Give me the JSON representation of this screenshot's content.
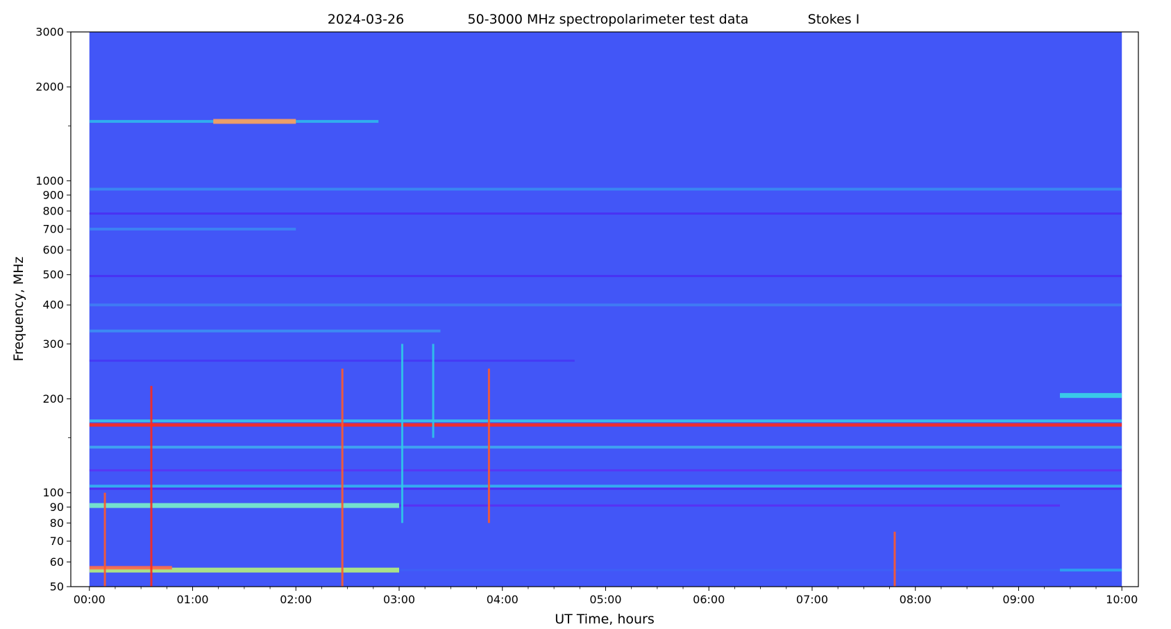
{
  "chart_data": {
    "type": "heatmap",
    "title": {
      "date": "2024-03-26",
      "main": "50-3000 MHz spectropolarimeter test data",
      "parameter": "Stokes I"
    },
    "xlabel": "UT Time, hours",
    "ylabel": "Frequency, MHz",
    "x_scale": "time",
    "y_scale": "log",
    "xlim": [
      "00:00",
      "10:00"
    ],
    "data_extent_hours": [
      0,
      10
    ],
    "ylim": [
      50,
      3000
    ],
    "x_ticks": [
      "00:00",
      "01:00",
      "02:00",
      "03:00",
      "04:00",
      "05:00",
      "06:00",
      "07:00",
      "08:00",
      "09:00",
      "10:00"
    ],
    "y_tick_labels": [
      "50",
      "60",
      "70",
      "80",
      "90",
      "100",
      "200",
      "300",
      "400",
      "500",
      "600",
      "700",
      "800",
      "900",
      "1000",
      "2000",
      "3000"
    ],
    "y_minor_ticks": [
      150,
      1500
    ],
    "colormap": "rainbow",
    "background_color": "#4256f7",
    "grid": false,
    "legend": "none",
    "features": {
      "bands": [
        {
          "f": 56.5,
          "t": [
            0,
            3.0
          ],
          "color": "#b6f27a",
          "intensity": "high"
        },
        {
          "f": 57.5,
          "t": [
            0,
            0.8
          ],
          "color": "#ff6a4a",
          "intensity": "very-high"
        },
        {
          "f": 56.5,
          "t": [
            3.0,
            9.4
          ],
          "color": "#3e62f5",
          "intensity": "low"
        },
        {
          "f": 56.5,
          "t": [
            9.4,
            10
          ],
          "color": "#2aa6f0",
          "intensity": "medium"
        },
        {
          "f": 91,
          "t": [
            0,
            3.0
          ],
          "color": "#7af0c8",
          "intensity": "high"
        },
        {
          "f": 91,
          "t": [
            3.0,
            9.4
          ],
          "color": "#5b2ff2",
          "intensity": "low"
        },
        {
          "f": 105,
          "t": [
            0,
            10
          ],
          "color": "#34b4ee",
          "intensity": "medium"
        },
        {
          "f": 103,
          "t": [
            0,
            10
          ],
          "color": "#5228f0",
          "intensity": "low"
        },
        {
          "f": 118,
          "t": [
            0,
            10
          ],
          "color": "#5a34f3",
          "intensity": "low"
        },
        {
          "f": 140,
          "t": [
            0,
            10
          ],
          "color": "#3fa8ee",
          "intensity": "medium"
        },
        {
          "f": 165,
          "t": [
            0,
            10
          ],
          "color": "#ff2a1a",
          "intensity": "very-high"
        },
        {
          "f": 170,
          "t": [
            0,
            10
          ],
          "color": "#3ac6e8",
          "intensity": "medium"
        },
        {
          "f": 205,
          "t": [
            9.4,
            10
          ],
          "color": "#38d6e6",
          "intensity": "high"
        },
        {
          "f": 265,
          "t": [
            0,
            4.7
          ],
          "color": "#4638f4",
          "intensity": "low"
        },
        {
          "f": 330,
          "t": [
            0,
            3.4
          ],
          "color": "#3c90f2",
          "intensity": "medium"
        },
        {
          "f": 400,
          "t": [
            0,
            10
          ],
          "color": "#3f7ef2",
          "intensity": "medium"
        },
        {
          "f": 495,
          "t": [
            0,
            10
          ],
          "color": "#4a2ff2",
          "intensity": "low"
        },
        {
          "f": 700,
          "t": [
            0,
            2.0
          ],
          "color": "#3c86f2",
          "intensity": "medium"
        },
        {
          "f": 785,
          "t": [
            0,
            10
          ],
          "color": "#4a2ff2",
          "intensity": "low"
        },
        {
          "f": 940,
          "t": [
            0,
            10
          ],
          "color": "#3a8cf1",
          "intensity": "medium"
        },
        {
          "f": 1550,
          "t": [
            0,
            2.8
          ],
          "color": "#2fb8ec",
          "intensity": "medium"
        },
        {
          "f": 1550,
          "t": [
            1.2,
            2.0
          ],
          "color": "#ff9e5a",
          "intensity": "high"
        }
      ],
      "bursts": [
        {
          "t": 0.6,
          "f": [
            50,
            220
          ],
          "color": "#ff2a1a"
        },
        {
          "t": 0.15,
          "f": [
            50,
            100
          ],
          "color": "#ff5a2a"
        },
        {
          "t": 2.45,
          "f": [
            50,
            250
          ],
          "color": "#ff5a2a"
        },
        {
          "t": 3.03,
          "f": [
            80,
            300
          ],
          "color": "#2fc8e8"
        },
        {
          "t": 3.33,
          "f": [
            150,
            300
          ],
          "color": "#2fc8e8"
        },
        {
          "t": 3.87,
          "f": [
            80,
            250
          ],
          "color": "#ff5a2a"
        },
        {
          "t": 7.8,
          "f": [
            50,
            75
          ],
          "color": "#ff5a2a"
        }
      ]
    }
  }
}
